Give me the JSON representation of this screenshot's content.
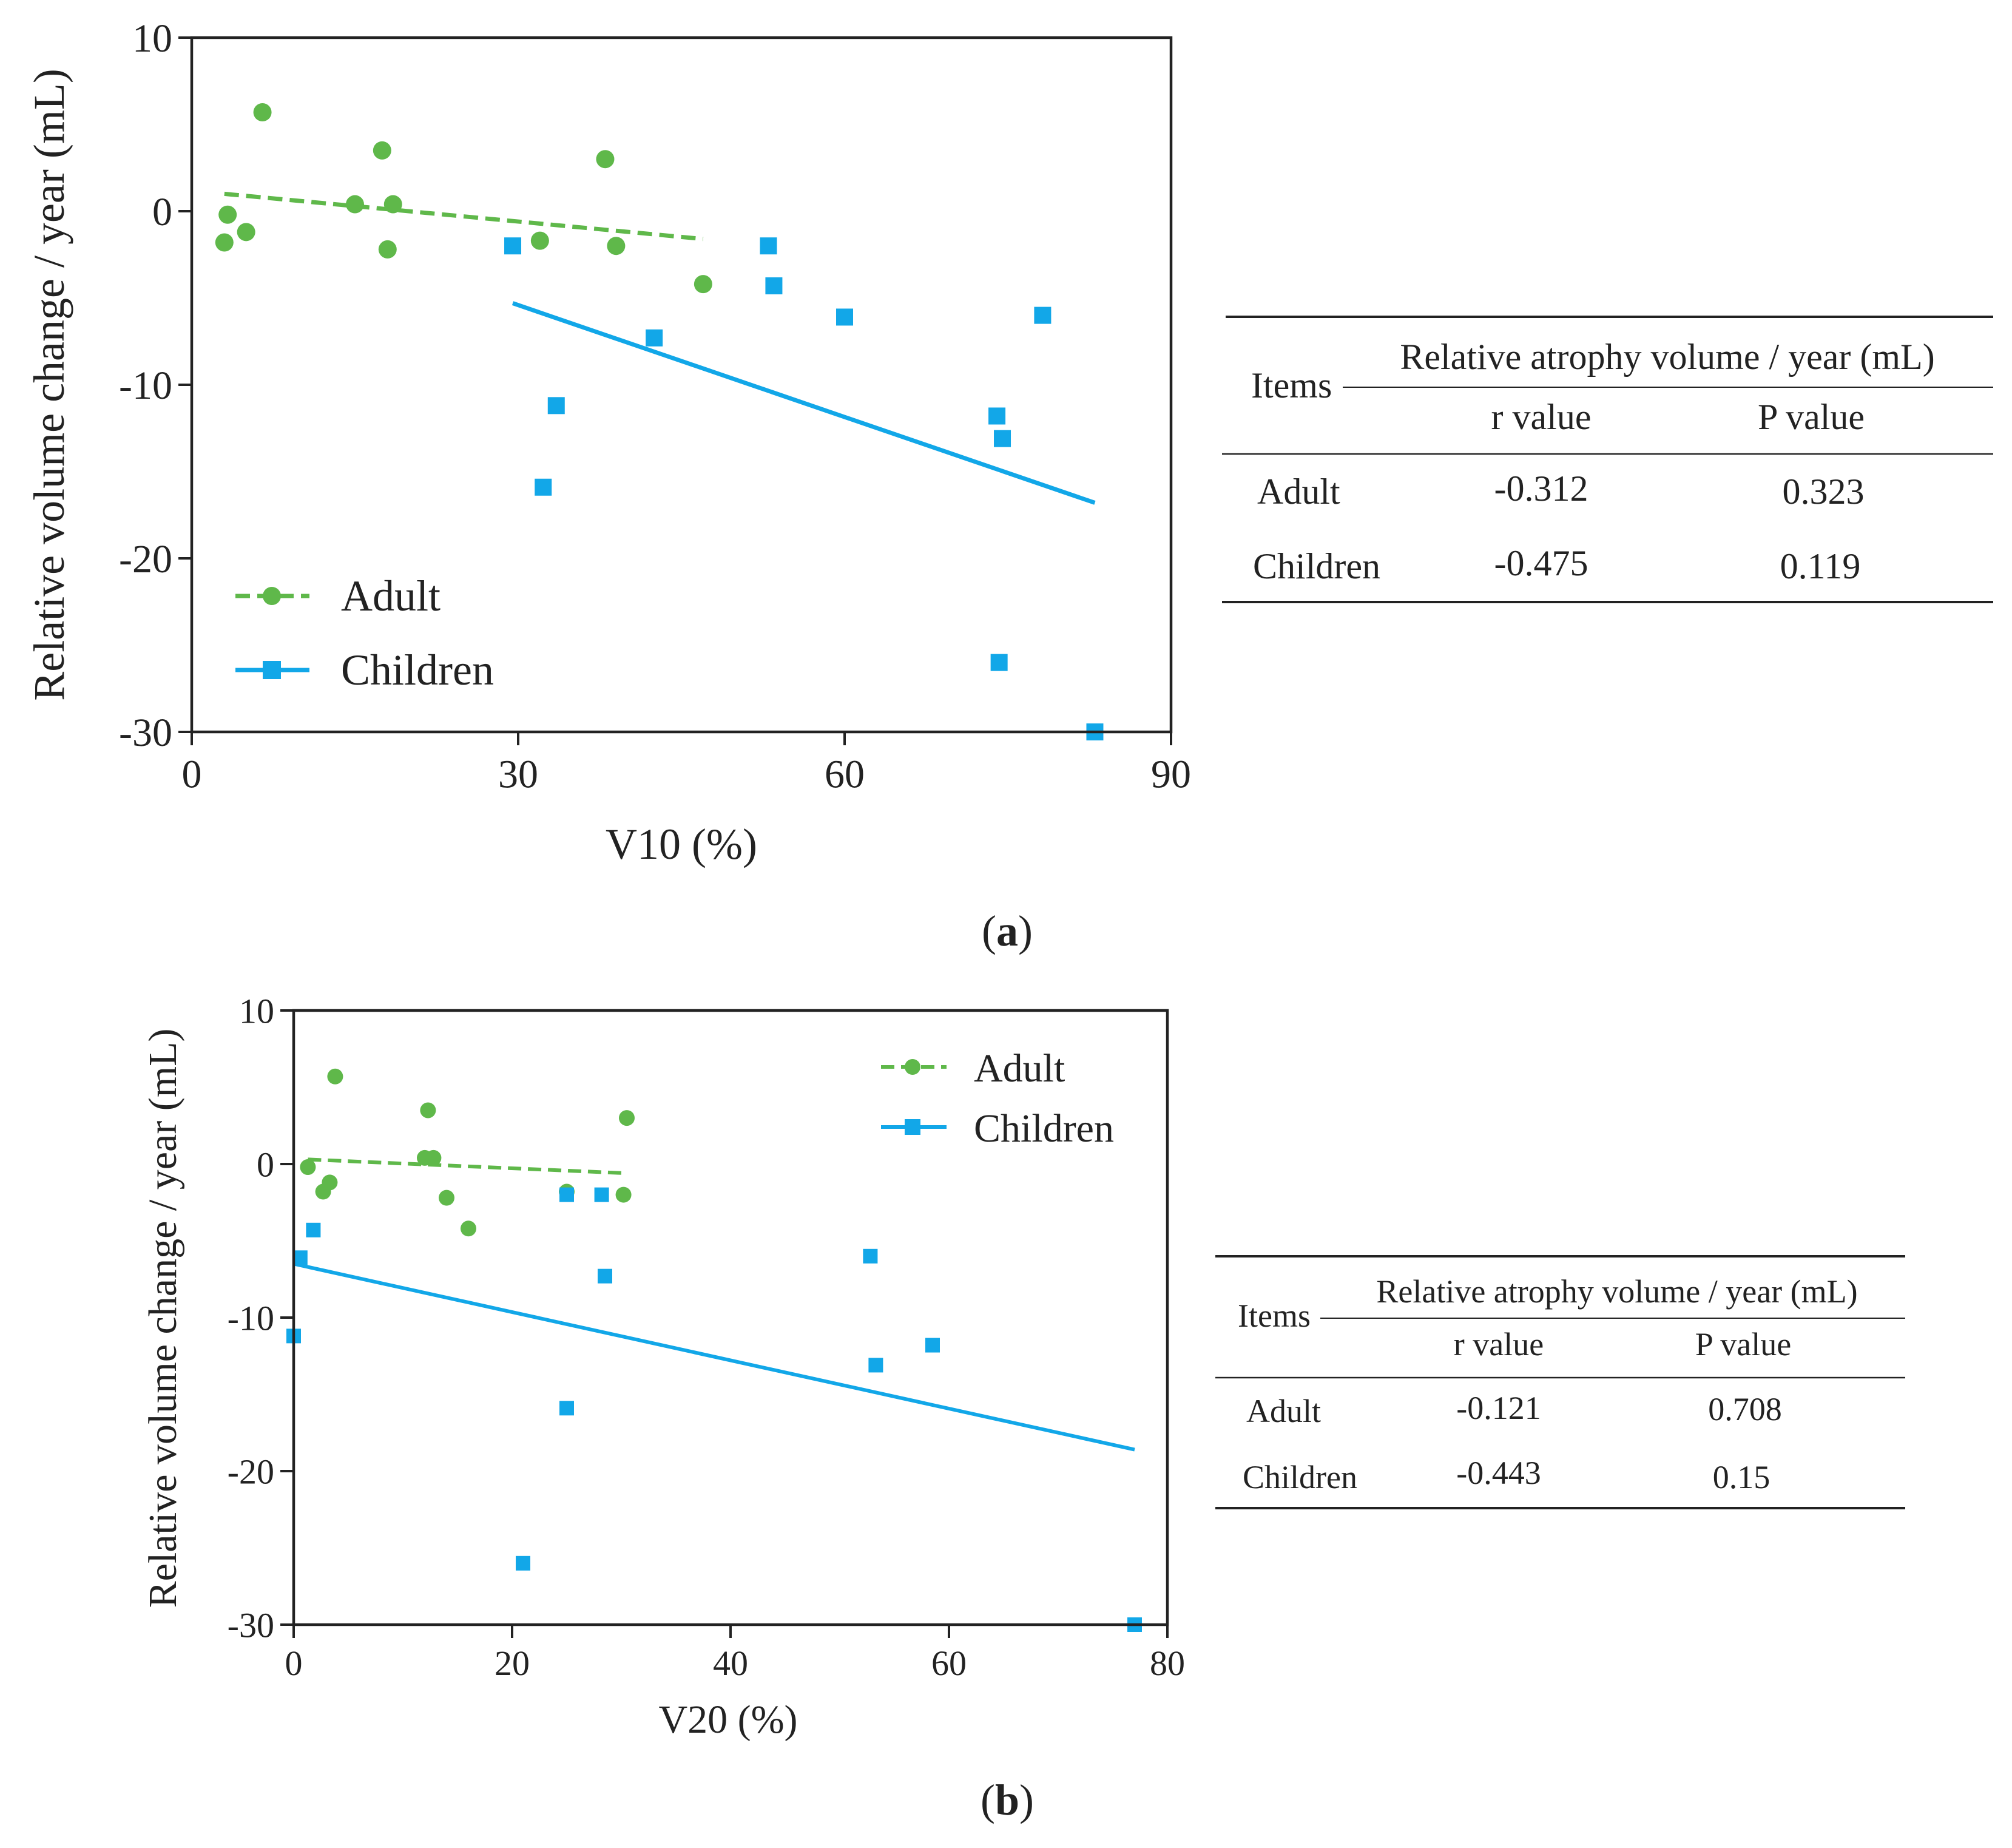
{
  "colors": {
    "adult": "#5fb84a",
    "children": "#12a7e8",
    "axis": "#222222"
  },
  "panels": [
    {
      "label_open": "(",
      "label_letter": "a",
      "label_close": ")",
      "table": {
        "items_header": "Items",
        "group_header": "Relative atrophy volume / year (mL)",
        "col_r": "r value",
        "col_p": "P value",
        "rows": [
          {
            "name": "Adult",
            "r": "-0.312",
            "p": "0.323"
          },
          {
            "name": "Children",
            "r": "-0.475",
            "p": "0.119"
          }
        ]
      }
    },
    {
      "label_open": "(",
      "label_letter": "b",
      "label_close": ")",
      "table": {
        "items_header": "Items",
        "group_header": "Relative atrophy volume / year (mL)",
        "col_r": "r value",
        "col_p": "P value",
        "rows": [
          {
            "name": "Adult",
            "r": "-0.121",
            "p": "0.708"
          },
          {
            "name": "Children",
            "r": "-0.443",
            "p": "0.15"
          }
        ]
      }
    }
  ],
  "chart_data": [
    {
      "type": "scatter",
      "title": "",
      "xlabel": "V10 (%)",
      "ylabel": "Relative volume change / year (mL)",
      "xlim": [
        0,
        90
      ],
      "ylim": [
        -30,
        10
      ],
      "xticks": [
        0,
        30,
        60,
        90
      ],
      "yticks": [
        -30,
        -20,
        -10,
        0,
        10
      ],
      "legend_position": "bottom-left",
      "series": [
        {
          "name": "Adult",
          "marker": "circle",
          "line": "dashed",
          "points": [
            [
              3,
              -1.8
            ],
            [
              3.3,
              -0.2
            ],
            [
              5,
              -1.2
            ],
            [
              6.5,
              5.7
            ],
            [
              15,
              0.4
            ],
            [
              17.5,
              3.5
            ],
            [
              18,
              -2.2
            ],
            [
              18.5,
              0.4
            ],
            [
              32,
              -1.7
            ],
            [
              38,
              3
            ],
            [
              39,
              -2
            ],
            [
              47,
              -4.2
            ]
          ],
          "fit": [
            [
              3,
              1
            ],
            [
              47,
              -1.6
            ]
          ]
        },
        {
          "name": "Children",
          "marker": "square",
          "line": "solid",
          "points": [
            [
              29.5,
              -2
            ],
            [
              32.3,
              -15.9
            ],
            [
              33.5,
              -11.2
            ],
            [
              42.5,
              -7.3
            ],
            [
              53,
              -2
            ],
            [
              53.5,
              -4.3
            ],
            [
              60,
              -6.1
            ],
            [
              74,
              -11.8
            ],
            [
              74.5,
              -13.1
            ],
            [
              74.2,
              -26
            ],
            [
              78.2,
              -6
            ],
            [
              83,
              -30
            ]
          ],
          "fit": [
            [
              29.5,
              -5.3
            ],
            [
              83,
              -16.8
            ]
          ]
        }
      ]
    },
    {
      "type": "scatter",
      "title": "",
      "xlabel": "V20 (%)",
      "ylabel": "Relative volume change / year (mL)",
      "xlim": [
        0,
        80
      ],
      "ylim": [
        -30,
        10
      ],
      "xticks": [
        0,
        20,
        40,
        60,
        80
      ],
      "yticks": [
        -30,
        -20,
        -10,
        0,
        10
      ],
      "legend_position": "top-right",
      "series": [
        {
          "name": "Adult",
          "marker": "circle",
          "line": "dashed",
          "points": [
            [
              1.3,
              -0.2
            ],
            [
              2.7,
              -1.8
            ],
            [
              3.3,
              -1.2
            ],
            [
              3.8,
              5.7
            ],
            [
              12,
              0.4
            ],
            [
              12.3,
              3.5
            ],
            [
              12.8,
              0.4
            ],
            [
              14,
              -2.2
            ],
            [
              16,
              -4.2
            ],
            [
              25,
              -1.8
            ],
            [
              30.2,
              -2
            ],
            [
              30.5,
              3
            ]
          ],
          "fit": [
            [
              1.3,
              0.3
            ],
            [
              30.5,
              -0.6
            ]
          ]
        },
        {
          "name": "Children",
          "marker": "square",
          "line": "solid",
          "points": [
            [
              0,
              -11.2
            ],
            [
              0.6,
              -6.1
            ],
            [
              1.8,
              -4.3
            ],
            [
              21,
              -26
            ],
            [
              25,
              -2
            ],
            [
              25,
              -15.9
            ],
            [
              28.2,
              -2
            ],
            [
              28.5,
              -7.3
            ],
            [
              52.8,
              -6
            ],
            [
              53.3,
              -13.1
            ],
            [
              58.5,
              -11.8
            ],
            [
              77,
              -30
            ]
          ],
          "fit": [
            [
              0,
              -6.5
            ],
            [
              77,
              -18.6
            ]
          ]
        }
      ]
    }
  ]
}
